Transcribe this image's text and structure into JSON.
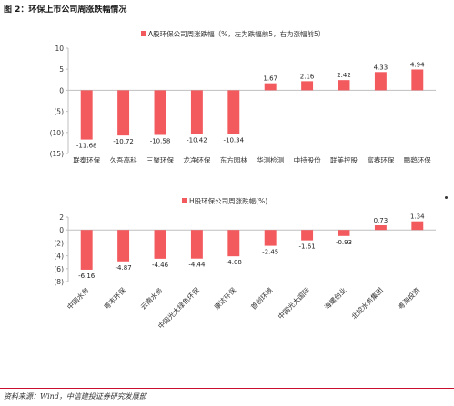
{
  "page": {
    "figure_title": "图 2：环保上市公司周涨跌幅情况",
    "source": "资料来源：Wind，中信建投证券研究发展部"
  },
  "colors": {
    "bar": "#f25a5e",
    "rule": "#c8102e",
    "axis": "#bfbfbf"
  },
  "chart_data": [
    {
      "type": "bar",
      "title": "",
      "legend": "A股环保公司周涨跌幅（%，左为跌幅前5，右为涨幅前5）",
      "legend_position": "top-center",
      "categories": [
        "联泰环保",
        "久吾高科",
        "三聚环保",
        "龙净环保",
        "东方园林",
        "华测检测",
        "中持股份",
        "联美控股",
        "富春环保",
        "鹏鹞环保"
      ],
      "values": [
        -11.68,
        -10.72,
        -10.58,
        -10.42,
        -10.34,
        1.67,
        2.16,
        2.42,
        4.33,
        4.94
      ],
      "ylim": [
        -15,
        10
      ],
      "yticks": [
        10,
        5,
        0,
        -5,
        -10,
        -15
      ],
      "ytick_labels": [
        "10",
        "5",
        "0",
        "(5)",
        "(10)",
        "(15)"
      ],
      "data_labels": [
        "-11.68",
        "-10.72",
        "-10.58",
        "-10.42",
        "-10.34",
        "1.67",
        "2.16",
        "2.42",
        "4.33",
        "4.94"
      ],
      "grid": false
    },
    {
      "type": "bar",
      "title": "",
      "legend": "H股环保公司周涨跌幅(%)",
      "legend_position": "top-center",
      "categories": [
        "中国水务",
        "粤丰环保",
        "云南水务",
        "中国光大绿色环保",
        "康达环保",
        "首创环境",
        "中国光大国际",
        "海螺创业",
        "北控水务集团",
        "粤海投资"
      ],
      "values": [
        -6.16,
        -4.87,
        -4.46,
        -4.44,
        -4.08,
        -2.45,
        -1.61,
        -0.93,
        0.73,
        1.34
      ],
      "ylim": [
        -8,
        2
      ],
      "yticks": [
        2,
        0,
        -2,
        -4,
        -6,
        -8
      ],
      "ytick_labels": [
        "2",
        "0",
        "(2)",
        "(4)",
        "(6)",
        "(8)"
      ],
      "data_labels": [
        "-6.16",
        "-4.87",
        "-4.46",
        "-4.44",
        "-4.08",
        "-2.45",
        "-1.61",
        "-0.93",
        "0.73",
        "1.34"
      ],
      "grid": false
    }
  ]
}
